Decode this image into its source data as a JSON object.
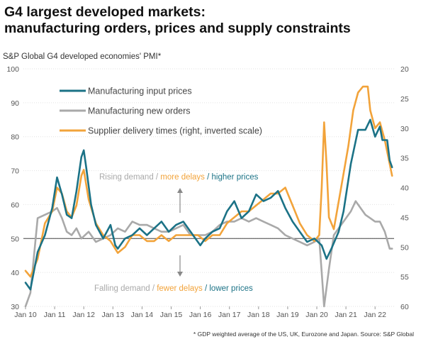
{
  "title_line1": "G4 largest developed markets:",
  "title_line2": "manufacturing orders, prices and supply constraints",
  "subtitle": "S&P Global G4 developed economies' PMI*",
  "footnote": "* GDP weighted average of the US, UK, Eurozone and Japan.   Source: S&P Global",
  "colors": {
    "input_prices": "#1b7286",
    "new_orders": "#a9a9a9",
    "delivery_times": "#f2a33a",
    "zero_line": "#444444",
    "grid": "#e2e2e2",
    "arrow": "#888888"
  },
  "annotations": {
    "upper": {
      "part1": "Rising demand / ",
      "part2": "more delays",
      "part3": " / ",
      "part4": "higher prices"
    },
    "lower": {
      "part1": "Falling demand / ",
      "part2": "fewer delays",
      "part3": " / ",
      "part4": "lower prices"
    }
  },
  "chart_data": {
    "type": "line",
    "x_ticks": [
      "Jan 10",
      "Jan 11",
      "Jan 12",
      "Jan 13",
      "Jan 14",
      "Jan 15",
      "Jan 16",
      "Jan 17",
      "Jan 18",
      "Jan 19",
      "Jan 20",
      "Jan 21",
      "Jan 22"
    ],
    "y_left": {
      "ticks": [
        30,
        40,
        50,
        60,
        70,
        80,
        90,
        100
      ],
      "range": [
        30,
        100
      ]
    },
    "y_right": {
      "ticks": [
        20,
        25,
        30,
        35,
        40,
        45,
        50,
        55,
        60
      ],
      "range": [
        20,
        60
      ],
      "inverted": true
    },
    "reference_line": 50,
    "legend_position": "top-left",
    "series": [
      {
        "name": "Manufacturing input prices",
        "axis": "left",
        "color": "#1b7286",
        "points": [
          [
            "2010-01",
            37
          ],
          [
            "2010-03",
            35
          ],
          [
            "2010-06",
            46
          ],
          [
            "2010-09",
            51
          ],
          [
            "2010-12",
            59
          ],
          [
            "2011-02",
            68
          ],
          [
            "2011-04",
            63
          ],
          [
            "2011-06",
            57
          ],
          [
            "2011-08",
            56
          ],
          [
            "2011-10",
            64
          ],
          [
            "2011-12",
            74
          ],
          [
            "2012-01",
            76
          ],
          [
            "2012-02",
            71
          ],
          [
            "2012-04",
            60
          ],
          [
            "2012-06",
            54
          ],
          [
            "2012-09",
            50
          ],
          [
            "2012-12",
            54
          ],
          [
            "2013-02",
            48
          ],
          [
            "2013-03",
            47
          ],
          [
            "2013-06",
            50
          ],
          [
            "2013-09",
            51
          ],
          [
            "2013-12",
            53
          ],
          [
            "2014-03",
            51
          ],
          [
            "2014-06",
            53
          ],
          [
            "2014-09",
            55
          ],
          [
            "2014-12",
            52
          ],
          [
            "2015-03",
            54
          ],
          [
            "2015-06",
            55
          ],
          [
            "2015-09",
            52
          ],
          [
            "2015-12",
            49
          ],
          [
            "2016-01",
            48
          ],
          [
            "2016-03",
            50
          ],
          [
            "2016-06",
            52
          ],
          [
            "2016-09",
            53
          ],
          [
            "2016-12",
            58
          ],
          [
            "2017-03",
            61
          ],
          [
            "2017-06",
            56
          ],
          [
            "2017-09",
            58
          ],
          [
            "2017-12",
            63
          ],
          [
            "2018-03",
            61
          ],
          [
            "2018-06",
            62
          ],
          [
            "2018-09",
            64
          ],
          [
            "2018-12",
            59
          ],
          [
            "2019-03",
            55
          ],
          [
            "2019-06",
            52
          ],
          [
            "2019-09",
            49
          ],
          [
            "2019-12",
            50
          ],
          [
            "2020-03",
            48
          ],
          [
            "2020-05",
            44
          ],
          [
            "2020-07",
            47
          ],
          [
            "2020-10",
            52
          ],
          [
            "2020-12",
            58
          ],
          [
            "2021-03",
            72
          ],
          [
            "2021-06",
            82
          ],
          [
            "2021-09",
            82
          ],
          [
            "2021-11",
            85
          ],
          [
            "2022-01",
            80
          ],
          [
            "2022-03",
            83
          ],
          [
            "2022-04",
            79
          ],
          [
            "2022-06",
            79
          ],
          [
            "2022-07",
            73
          ],
          [
            "2022-08",
            71
          ]
        ]
      },
      {
        "name": "Manufacturing new orders",
        "axis": "left",
        "color": "#a9a9a9",
        "points": [
          [
            "2010-01",
            30
          ],
          [
            "2010-03",
            34
          ],
          [
            "2010-06",
            56
          ],
          [
            "2010-09",
            57
          ],
          [
            "2010-12",
            58
          ],
          [
            "2011-02",
            59
          ],
          [
            "2011-04",
            56
          ],
          [
            "2011-06",
            52
          ],
          [
            "2011-08",
            51
          ],
          [
            "2011-10",
            53
          ],
          [
            "2011-12",
            50
          ],
          [
            "2012-03",
            52
          ],
          [
            "2012-06",
            49
          ],
          [
            "2012-09",
            50
          ],
          [
            "2012-12",
            51
          ],
          [
            "2013-03",
            53
          ],
          [
            "2013-06",
            52
          ],
          [
            "2013-09",
            55
          ],
          [
            "2013-12",
            54
          ],
          [
            "2014-03",
            54
          ],
          [
            "2014-06",
            53
          ],
          [
            "2014-09",
            52
          ],
          [
            "2014-12",
            52
          ],
          [
            "2015-03",
            53
          ],
          [
            "2015-06",
            54
          ],
          [
            "2015-09",
            51
          ],
          [
            "2015-12",
            51
          ],
          [
            "2016-03",
            51
          ],
          [
            "2016-06",
            52
          ],
          [
            "2016-09",
            54
          ],
          [
            "2016-12",
            55
          ],
          [
            "2017-03",
            55
          ],
          [
            "2017-06",
            56
          ],
          [
            "2017-09",
            55
          ],
          [
            "2017-12",
            56
          ],
          [
            "2018-03",
            55
          ],
          [
            "2018-06",
            54
          ],
          [
            "2018-09",
            53
          ],
          [
            "2018-12",
            51
          ],
          [
            "2019-03",
            50
          ],
          [
            "2019-06",
            49
          ],
          [
            "2019-09",
            48
          ],
          [
            "2019-12",
            49
          ],
          [
            "2020-02",
            50
          ],
          [
            "2020-03",
            40
          ],
          [
            "2020-04",
            28
          ],
          [
            "2020-06",
            41
          ],
          [
            "2020-08",
            51
          ],
          [
            "2020-10",
            53
          ],
          [
            "2020-12",
            55
          ],
          [
            "2021-03",
            58
          ],
          [
            "2021-05",
            61
          ],
          [
            "2021-07",
            59
          ],
          [
            "2021-09",
            57
          ],
          [
            "2021-11",
            56
          ],
          [
            "2022-01",
            55
          ],
          [
            "2022-03",
            55
          ],
          [
            "2022-05",
            52
          ],
          [
            "2022-07",
            47
          ],
          [
            "2022-08",
            47
          ]
        ]
      },
      {
        "name": "Supplier delivery times (right, inverted scale)",
        "axis": "right",
        "color": "#f2a33a",
        "points": [
          [
            "2010-01",
            54
          ],
          [
            "2010-03",
            55
          ],
          [
            "2010-06",
            52
          ],
          [
            "2010-09",
            46
          ],
          [
            "2010-12",
            44
          ],
          [
            "2011-02",
            40
          ],
          [
            "2011-04",
            41
          ],
          [
            "2011-06",
            44
          ],
          [
            "2011-08",
            45
          ],
          [
            "2011-10",
            43
          ],
          [
            "2011-12",
            38
          ],
          [
            "2012-01",
            37
          ],
          [
            "2012-03",
            42
          ],
          [
            "2012-06",
            46
          ],
          [
            "2012-09",
            48
          ],
          [
            "2012-12",
            49
          ],
          [
            "2013-03",
            51
          ],
          [
            "2013-06",
            50
          ],
          [
            "2013-09",
            48
          ],
          [
            "2013-12",
            48
          ],
          [
            "2014-03",
            49
          ],
          [
            "2014-06",
            49
          ],
          [
            "2014-09",
            48
          ],
          [
            "2014-12",
            49
          ],
          [
            "2015-03",
            48
          ],
          [
            "2015-06",
            48
          ],
          [
            "2015-09",
            48
          ],
          [
            "2015-12",
            48
          ],
          [
            "2016-03",
            49
          ],
          [
            "2016-06",
            48
          ],
          [
            "2016-09",
            48
          ],
          [
            "2016-12",
            46
          ],
          [
            "2017-03",
            45
          ],
          [
            "2017-06",
            44
          ],
          [
            "2017-09",
            44
          ],
          [
            "2017-12",
            43
          ],
          [
            "2018-03",
            42
          ],
          [
            "2018-06",
            41
          ],
          [
            "2018-09",
            41
          ],
          [
            "2018-12",
            40
          ],
          [
            "2019-03",
            43
          ],
          [
            "2019-06",
            46
          ],
          [
            "2019-09",
            48
          ],
          [
            "2019-12",
            49
          ],
          [
            "2020-02",
            48
          ],
          [
            "2020-03",
            40
          ],
          [
            "2020-04",
            29
          ],
          [
            "2020-05",
            36
          ],
          [
            "2020-06",
            45
          ],
          [
            "2020-08",
            47
          ],
          [
            "2020-11",
            40
          ],
          [
            "2021-02",
            33
          ],
          [
            "2021-04",
            27
          ],
          [
            "2021-06",
            24
          ],
          [
            "2021-08",
            23
          ],
          [
            "2021-10",
            23
          ],
          [
            "2021-11",
            27
          ],
          [
            "2022-01",
            30
          ],
          [
            "2022-03",
            29
          ],
          [
            "2022-05",
            32
          ],
          [
            "2022-07",
            36
          ],
          [
            "2022-08",
            38
          ]
        ]
      }
    ]
  }
}
